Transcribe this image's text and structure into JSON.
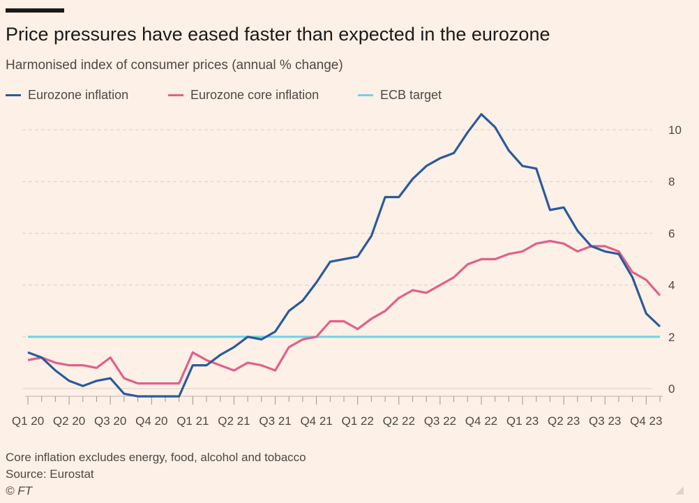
{
  "header": {
    "title": "Price pressures have eased faster than expected in the eurozone",
    "subtitle": "Harmonised index of consumer prices (annual % change)"
  },
  "footer": {
    "note": "Core inflation excludes energy, food, alcohol and tobacco",
    "source": "Source: Eurostat",
    "credit": "© FT"
  },
  "colors": {
    "headline": "#2a5a9b",
    "core": "#e0608a",
    "target": "#72d2e0",
    "grid": "#d9cec5",
    "background": "#fdf0e6"
  },
  "chart_data": {
    "type": "line",
    "title": "Price pressures have eased faster than expected in the eurozone",
    "subtitle": "Harmonised index of consumer prices (annual % change)",
    "ylim": [
      -0.3,
      10.6
    ],
    "yticks": [
      0,
      2,
      4,
      6,
      8,
      10
    ],
    "y_axis_side": "right",
    "grid": "horizontal dashed",
    "legend": "top-left",
    "xtick_labels": [
      "Q1 20",
      "Q2 20",
      "Q3 20",
      "Q4 20",
      "Q1 21",
      "Q2 21",
      "Q3 21",
      "Q4 21",
      "Q1 22",
      "Q2 22",
      "Q3 22",
      "Q4 22",
      "Q1 23",
      "Q2 23",
      "Q3 23",
      "Q4 23"
    ],
    "x": [
      "2020-01",
      "2020-02",
      "2020-03",
      "2020-04",
      "2020-05",
      "2020-06",
      "2020-07",
      "2020-08",
      "2020-09",
      "2020-10",
      "2020-11",
      "2020-12",
      "2021-01",
      "2021-02",
      "2021-03",
      "2021-04",
      "2021-05",
      "2021-06",
      "2021-07",
      "2021-08",
      "2021-09",
      "2021-10",
      "2021-11",
      "2021-12",
      "2022-01",
      "2022-02",
      "2022-03",
      "2022-04",
      "2022-05",
      "2022-06",
      "2022-07",
      "2022-08",
      "2022-09",
      "2022-10",
      "2022-11",
      "2022-12",
      "2023-01",
      "2023-02",
      "2023-03",
      "2023-04",
      "2023-05",
      "2023-06",
      "2023-07",
      "2023-08",
      "2023-09",
      "2023-10",
      "2023-11"
    ],
    "series": [
      {
        "name": "Eurozone inflation",
        "color": "#2a5a9b",
        "values": [
          1.4,
          1.2,
          0.7,
          0.3,
          0.1,
          0.3,
          0.4,
          -0.2,
          -0.3,
          -0.3,
          -0.3,
          -0.3,
          0.9,
          0.9,
          1.3,
          1.6,
          2.0,
          1.9,
          2.2,
          3.0,
          3.4,
          4.1,
          4.9,
          5.0,
          5.1,
          5.9,
          7.4,
          7.4,
          8.1,
          8.6,
          8.9,
          9.1,
          9.9,
          10.6,
          10.1,
          9.2,
          8.6,
          8.5,
          6.9,
          7.0,
          6.1,
          5.5,
          5.3,
          5.2,
          4.3,
          2.9,
          2.4
        ]
      },
      {
        "name": "Eurozone core inflation",
        "color": "#e0608a",
        "values": [
          1.1,
          1.2,
          1.0,
          0.9,
          0.9,
          0.8,
          1.2,
          0.4,
          0.2,
          0.2,
          0.2,
          0.2,
          1.4,
          1.1,
          0.9,
          0.7,
          1.0,
          0.9,
          0.7,
          1.6,
          1.9,
          2.0,
          2.6,
          2.6,
          2.3,
          2.7,
          3.0,
          3.5,
          3.8,
          3.7,
          4.0,
          4.3,
          4.8,
          5.0,
          5.0,
          5.2,
          5.3,
          5.6,
          5.7,
          5.6,
          5.3,
          5.5,
          5.5,
          5.3,
          4.5,
          4.2,
          3.6
        ]
      },
      {
        "name": "ECB target",
        "color": "#72d2e0",
        "values": [
          2,
          2,
          2,
          2,
          2,
          2,
          2,
          2,
          2,
          2,
          2,
          2,
          2,
          2,
          2,
          2,
          2,
          2,
          2,
          2,
          2,
          2,
          2,
          2,
          2,
          2,
          2,
          2,
          2,
          2,
          2,
          2,
          2,
          2,
          2,
          2,
          2,
          2,
          2,
          2,
          2,
          2,
          2,
          2,
          2,
          2,
          2
        ]
      }
    ]
  }
}
